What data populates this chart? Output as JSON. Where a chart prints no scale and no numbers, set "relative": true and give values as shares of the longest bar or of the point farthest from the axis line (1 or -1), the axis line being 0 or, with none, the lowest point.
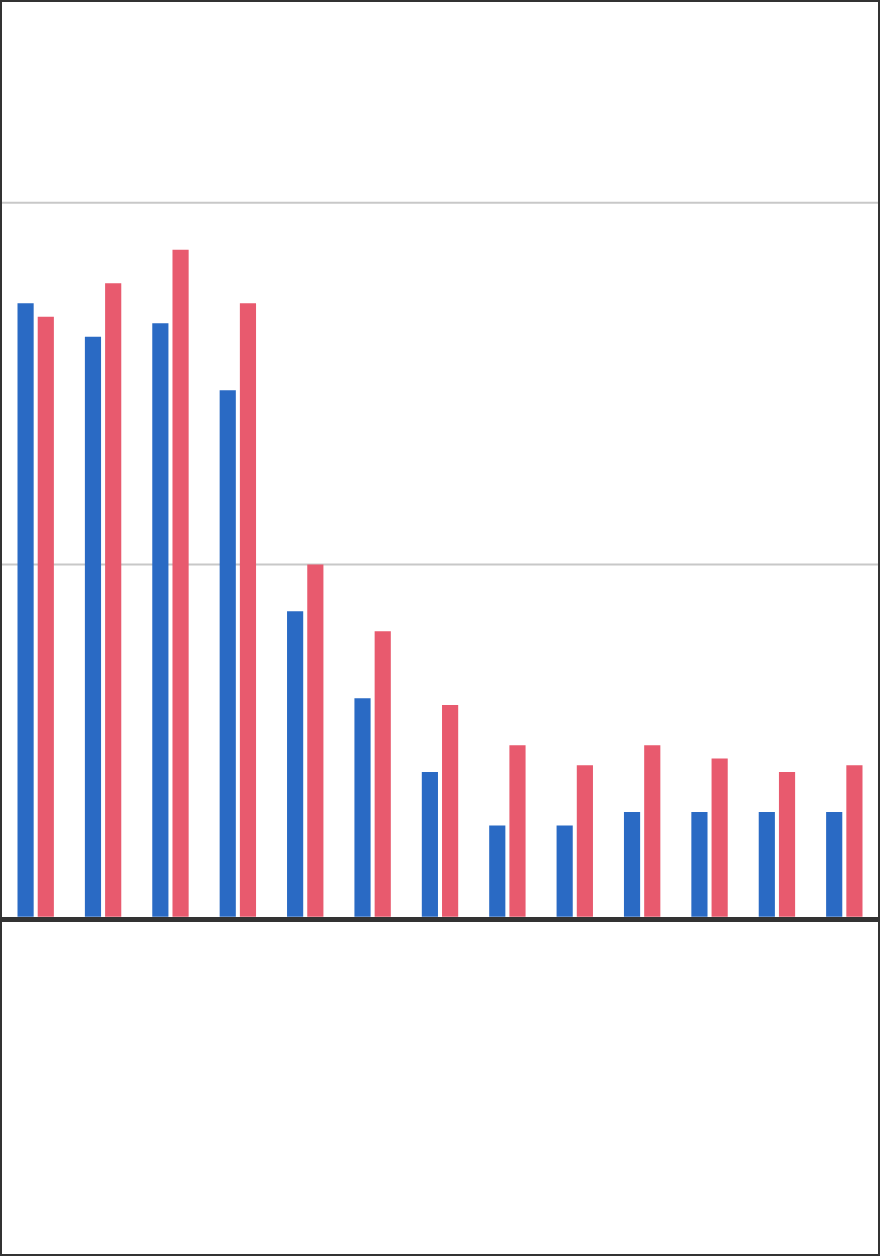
{
  "chart_data": {
    "type": "bar",
    "relative": true,
    "legend": false,
    "ref_lines": [
      {
        "axis": "y",
        "value": 0.53,
        "color": "#c8c8c8"
      },
      {
        "axis": "y",
        "value": 1.07,
        "color": "#c8c8c8"
      }
    ],
    "categories": [
      null,
      null,
      null,
      null,
      null,
      null,
      null,
      null,
      null,
      null,
      null,
      null,
      null
    ],
    "series": [
      {
        "color": "#2a6ac4",
        "values": [
          0.92,
          0.87,
          0.89,
          0.79,
          0.46,
          0.33,
          0.22,
          0.14,
          0.14,
          0.16,
          0.16,
          0.16,
          0.16
        ]
      },
      {
        "color": "#e85a6e",
        "values": [
          0.9,
          0.95,
          1,
          0.92,
          0.53,
          0.43,
          0.32,
          0.26,
          0.23,
          0.26,
          0.24,
          0.22,
          0.23
        ]
      }
    ]
  }
}
